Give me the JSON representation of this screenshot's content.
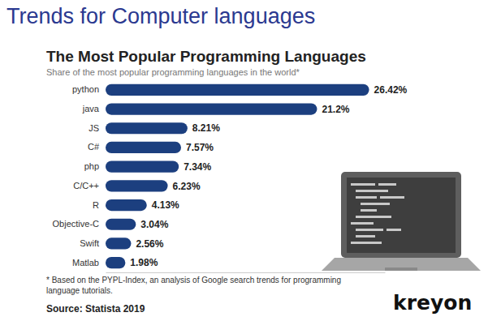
{
  "page_title": "Trends for Computer languages",
  "logo": "kreyon",
  "chart_data": {
    "type": "bar",
    "orientation": "horizontal",
    "title": "The Most Popular Programming Languages",
    "subtitle": "Share of the most popular programming languages in the world*",
    "categories": [
      "python",
      "java",
      "JS",
      "C#",
      "php",
      "C/C++",
      "R",
      "Objective-C",
      "Swift",
      "Matlab"
    ],
    "values": [
      26.42,
      21.2,
      8.21,
      7.57,
      7.34,
      6.23,
      4.13,
      3.04,
      2.56,
      1.98
    ],
    "value_labels": [
      "26.42%",
      "21.2%",
      "8.21%",
      "7.57%",
      "7.34%",
      "6.23%",
      "4.13%",
      "3.04%",
      "2.56%",
      "1.98%"
    ],
    "data_labels": true,
    "color": "#1c3f7f",
    "xlim": [
      0,
      28
    ],
    "tick_labels": false,
    "grid": false,
    "note": "* Based on the PYPL-Index, an analysis of Google search trends for programming language tutorials.",
    "source": "Source: Statista 2019"
  }
}
